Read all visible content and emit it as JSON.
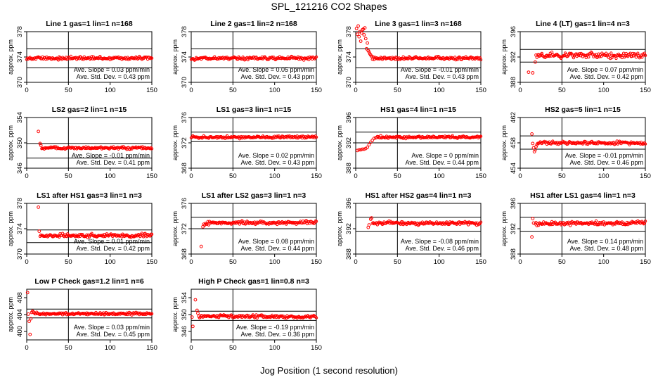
{
  "page_title": "SPL_121216  CO2 Shapes",
  "x_caption": "Jog Position (1 second resolution)",
  "colors": {
    "points": "#ff0000",
    "axes": "#000000",
    "background": "#ffffff"
  },
  "chart_data": [
    {
      "type": "scatter",
      "title": "Line 1 gas=1 lin=1 n=168",
      "ylabel": "approx. ppm",
      "xlim": [
        0,
        150
      ],
      "ylim": [
        370,
        378
      ],
      "y_ticks": [
        370,
        374,
        378
      ],
      "vline": 50,
      "hlines": [
        375.3,
        372.3
      ],
      "base": 373.8,
      "slope": 0.0002,
      "noise": 0.12,
      "x_range": [
        0,
        150
      ],
      "outliers": [],
      "annotations": [
        "Ave. Slope = 0.03  ppm/min",
        "Ave. Std. Dev. = 0.43  ppm"
      ]
    },
    {
      "type": "scatter",
      "title": "Line 2 gas=1 lin=2 n=168",
      "ylabel": "approx. ppm",
      "xlim": [
        0,
        150
      ],
      "ylim": [
        370,
        378
      ],
      "y_ticks": [
        370,
        374,
        378
      ],
      "vline": 50,
      "hlines": [
        375.3,
        372.3
      ],
      "base": 373.8,
      "slope": 0.0003,
      "noise": 0.12,
      "x_range": [
        0,
        150
      ],
      "outliers": [],
      "annotations": [
        "Ave. Slope = 0.05  ppm/min",
        "Ave. Std. Dev. = 0.43  ppm"
      ]
    },
    {
      "type": "scatter",
      "title": "Line 3 gas=1 lin=3 n=168",
      "ylabel": "approx. ppm",
      "xlim": [
        0,
        150
      ],
      "ylim": [
        370,
        378
      ],
      "y_ticks": [
        370,
        374,
        378
      ],
      "vline": 50,
      "hlines": [
        375.3,
        372.3
      ],
      "base": 373.8,
      "slope": -0.0001,
      "noise": 0.12,
      "x_range": [
        20,
        150
      ],
      "outliers": [
        [
          1,
          378.5
        ],
        [
          2,
          377.6
        ],
        [
          3,
          378.9
        ],
        [
          4,
          377.2
        ],
        [
          5,
          378.0
        ],
        [
          6,
          376.5
        ],
        [
          7,
          377.8
        ],
        [
          8,
          378.3
        ],
        [
          9,
          378.4
        ],
        [
          10,
          377.5
        ],
        [
          11,
          378.6
        ],
        [
          12,
          376.9
        ],
        [
          13,
          375.3
        ],
        [
          14,
          376.2
        ],
        [
          15,
          375.0
        ],
        [
          16,
          374.8
        ],
        [
          17,
          374.5
        ],
        [
          18,
          374.3
        ],
        [
          19,
          374.1
        ]
      ],
      "annotations": [
        "Ave. Slope = -0.01  ppm/min",
        "Ave. Std. Dev. = 0.43  ppm"
      ]
    },
    {
      "type": "scatter",
      "title": "Line 4 (LT) gas=1 lin=4 n=3",
      "ylabel": "approx. ppm",
      "xlim": [
        0,
        150
      ],
      "ylim": [
        388,
        396
      ],
      "y_ticks": [
        388,
        392,
        396
      ],
      "vline": 50,
      "hlines": [
        393.2,
        391.2
      ],
      "base": 392.2,
      "slope": 0.001,
      "noise": 0.22,
      "x_range": [
        20,
        150
      ],
      "outliers": [
        [
          10,
          389.6
        ],
        [
          15,
          389.5
        ],
        [
          18,
          391.2
        ],
        [
          19,
          392.3
        ]
      ],
      "annotations": [
        "Ave. Slope = 0.07  ppm/min",
        "Ave. Std. Dev. = 0.42  ppm"
      ]
    },
    {
      "type": "scatter",
      "title": "LS2 gas=2 lin=1 n=15",
      "ylabel": "approx. ppm",
      "xlim": [
        0,
        150
      ],
      "ylim": [
        346,
        354
      ],
      "y_ticks": [
        346,
        350,
        354
      ],
      "vline": 50,
      "hlines": [
        349.9,
        347.6
      ],
      "base": 349.2,
      "slope": -0.0002,
      "noise": 0.1,
      "x_range": [
        18,
        150
      ],
      "outliers": [
        [
          14,
          351.8
        ],
        [
          16,
          349.9
        ],
        [
          17,
          349.6
        ]
      ],
      "annotations": [
        "Ave. Slope = -0.01  ppm/min",
        "Ave. Std. Dev. = 0.41  ppm"
      ]
    },
    {
      "type": "scatter",
      "title": "LS1 gas=3 lin=1 n=15",
      "ylabel": "approx. ppm",
      "xlim": [
        0,
        150
      ],
      "ylim": [
        368,
        376
      ],
      "y_ticks": [
        368,
        372,
        376
      ],
      "vline": 50,
      "hlines": [
        373.7,
        372.2
      ],
      "base": 372.9,
      "slope": 0.0002,
      "noise": 0.1,
      "x_range": [
        0,
        150
      ],
      "outliers": [],
      "annotations": [
        "Ave. Slope = 0.02  ppm/min",
        "Ave. Std. Dev. = 0.43  ppm"
      ]
    },
    {
      "type": "scatter",
      "title": "HS1 gas=4 lin=1 n=15",
      "ylabel": "approx. ppm",
      "xlim": [
        0,
        150
      ],
      "ylim": [
        388,
        396
      ],
      "y_ticks": [
        388,
        392,
        396
      ],
      "vline": 50,
      "hlines": [
        393.7,
        392.0
      ],
      "base": 392.9,
      "slope": 0.0,
      "noise": 0.1,
      "x_range": [
        25,
        150
      ],
      "outliers": [
        [
          2,
          390.8
        ],
        [
          4,
          390.9
        ],
        [
          6,
          390.9
        ],
        [
          8,
          391.0
        ],
        [
          10,
          391.0
        ],
        [
          12,
          391.1
        ],
        [
          14,
          391.3
        ],
        [
          16,
          391.7
        ],
        [
          18,
          392.1
        ],
        [
          20,
          392.4
        ],
        [
          22,
          392.7
        ],
        [
          24,
          392.8
        ]
      ],
      "annotations": [
        "Ave. Slope = 0  ppm/min",
        "Ave. Std. Dev. = 0.44  ppm"
      ]
    },
    {
      "type": "scatter",
      "title": "HS2 gas=5 lin=1 n=15",
      "ylabel": "approx. ppm",
      "xlim": [
        0,
        150
      ],
      "ylim": [
        454,
        462
      ],
      "y_ticks": [
        454,
        458,
        462
      ],
      "vline": 50,
      "hlines": [
        459.1,
        457.0
      ],
      "base": 458.0,
      "slope": -0.0002,
      "noise": 0.12,
      "x_range": [
        22,
        150
      ],
      "outliers": [
        [
          14,
          459.4
        ],
        [
          15,
          457.9
        ],
        [
          16,
          457.2
        ],
        [
          17,
          456.6
        ],
        [
          18,
          456.9
        ],
        [
          19,
          457.4
        ],
        [
          20,
          457.7
        ],
        [
          21,
          457.9
        ]
      ],
      "annotations": [
        "Ave. Slope = -0.01  ppm/min",
        "Ave. Std. Dev. = 0.46  ppm"
      ]
    },
    {
      "type": "scatter",
      "title": "LS1 after HS1 gas=3 lin=1 n=3",
      "ylabel": "approx. ppm",
      "xlim": [
        0,
        150
      ],
      "ylim": [
        370,
        378
      ],
      "y_ticks": [
        370,
        374,
        378
      ],
      "vline": 50,
      "hlines": [
        373.8,
        371.8
      ],
      "base": 372.9,
      "slope": 0.0002,
      "noise": 0.15,
      "x_range": [
        16,
        150
      ],
      "outliers": [
        [
          14,
          377.4
        ],
        [
          15,
          373.6
        ]
      ],
      "annotations": [
        "Ave. Slope = 0.01  ppm/min",
        "Ave. Std. Dev. = 0.42  ppm"
      ]
    },
    {
      "type": "scatter",
      "title": "LS1 after LS2 gas=3 lin=1 n=3",
      "ylabel": "approx. ppm",
      "xlim": [
        0,
        150
      ],
      "ylim": [
        368,
        376
      ],
      "y_ticks": [
        368,
        372,
        376
      ],
      "vline": 50,
      "hlines": [
        373.8,
        372.0
      ],
      "base": 372.9,
      "slope": 0.0006,
      "noise": 0.14,
      "x_range": [
        16,
        150
      ],
      "outliers": [
        [
          12,
          369.2
        ],
        [
          14,
          372.3
        ],
        [
          15,
          372.7
        ]
      ],
      "annotations": [
        "Ave. Slope = 0.08  ppm/min",
        "Ave. Std. Dev. = 0.44  ppm"
      ]
    },
    {
      "type": "scatter",
      "title": "HS1 after HS2 gas=4 lin=1 n=3",
      "ylabel": "approx. ppm",
      "xlim": [
        0,
        150
      ],
      "ylim": [
        388,
        396
      ],
      "y_ticks": [
        388,
        392,
        396
      ],
      "vline": 50,
      "hlines": [
        393.8,
        391.6
      ],
      "base": 392.9,
      "slope": -0.0006,
      "noise": 0.14,
      "x_range": [
        20,
        150
      ],
      "outliers": [
        [
          15,
          392.2
        ],
        [
          16,
          392.6
        ],
        [
          18,
          393.5
        ],
        [
          19,
          393.7
        ]
      ],
      "annotations": [
        "Ave. Slope = -0.08  ppm/min",
        "Ave. Std. Dev. = 0.46  ppm"
      ]
    },
    {
      "type": "scatter",
      "title": "HS1 after LS1 gas=4 lin=1 n=3",
      "ylabel": "approx. ppm",
      "xlim": [
        0,
        150
      ],
      "ylim": [
        388,
        396
      ],
      "y_ticks": [
        388,
        392,
        396
      ],
      "vline": 50,
      "hlines": [
        393.8,
        391.6
      ],
      "base": 392.8,
      "slope": 0.0009,
      "noise": 0.15,
      "x_range": [
        18,
        150
      ],
      "outliers": [
        [
          14,
          390.7
        ],
        [
          15,
          393.6
        ],
        [
          16,
          392.9
        ]
      ],
      "annotations": [
        "Ave. Slope = 0.14  ppm/min",
        "Ave. Std. Dev. = 0.48  ppm"
      ]
    },
    {
      "type": "scatter",
      "title": "Low P Check gas=1.2 lin=1 n=6",
      "ylabel": "approx. ppm",
      "xlim": [
        0,
        150
      ],
      "ylim": [
        398,
        410
      ],
      "y_ticks": [
        400,
        404,
        408
      ],
      "vline": 50,
      "hlines": [
        405.3,
        403.2
      ],
      "base": 404.2,
      "slope": 0.0002,
      "noise": 0.15,
      "x_range": [
        10,
        150
      ],
      "outliers": [
        [
          1,
          409.2
        ],
        [
          2,
          404.1
        ],
        [
          3,
          402.4
        ],
        [
          4,
          399.3
        ],
        [
          5,
          403.0
        ],
        [
          6,
          404.5
        ],
        [
          7,
          404.8
        ],
        [
          8,
          404.6
        ],
        [
          9,
          404.4
        ]
      ],
      "annotations": [
        "Ave. Slope = 0.03  ppm/min",
        "Ave. Std. Dev. = 0.45  ppm"
      ]
    },
    {
      "type": "scatter",
      "title": "High P Check gas=1 lin=0.8 n=3",
      "ylabel": "approx. ppm",
      "xlim": [
        0,
        150
      ],
      "ylim": [
        344,
        356
      ],
      "y_ticks": [
        346,
        350,
        354
      ],
      "vline": 50,
      "hlines": [
        350.8,
        348.6
      ],
      "base": 349.6,
      "slope": -0.0013,
      "noise": 0.18,
      "x_range": [
        10,
        150
      ],
      "outliers": [
        [
          1,
          349.4
        ],
        [
          2,
          347.2
        ],
        [
          5,
          353.5
        ],
        [
          7,
          351.0
        ],
        [
          8,
          350.3
        ],
        [
          9,
          349.6
        ]
      ],
      "annotations": [
        "Ave. Slope = -0.19  ppm/min",
        "Ave. Std. Dev. = 0.36  ppm"
      ]
    }
  ],
  "x_ticks": [
    0,
    50,
    100,
    150
  ]
}
